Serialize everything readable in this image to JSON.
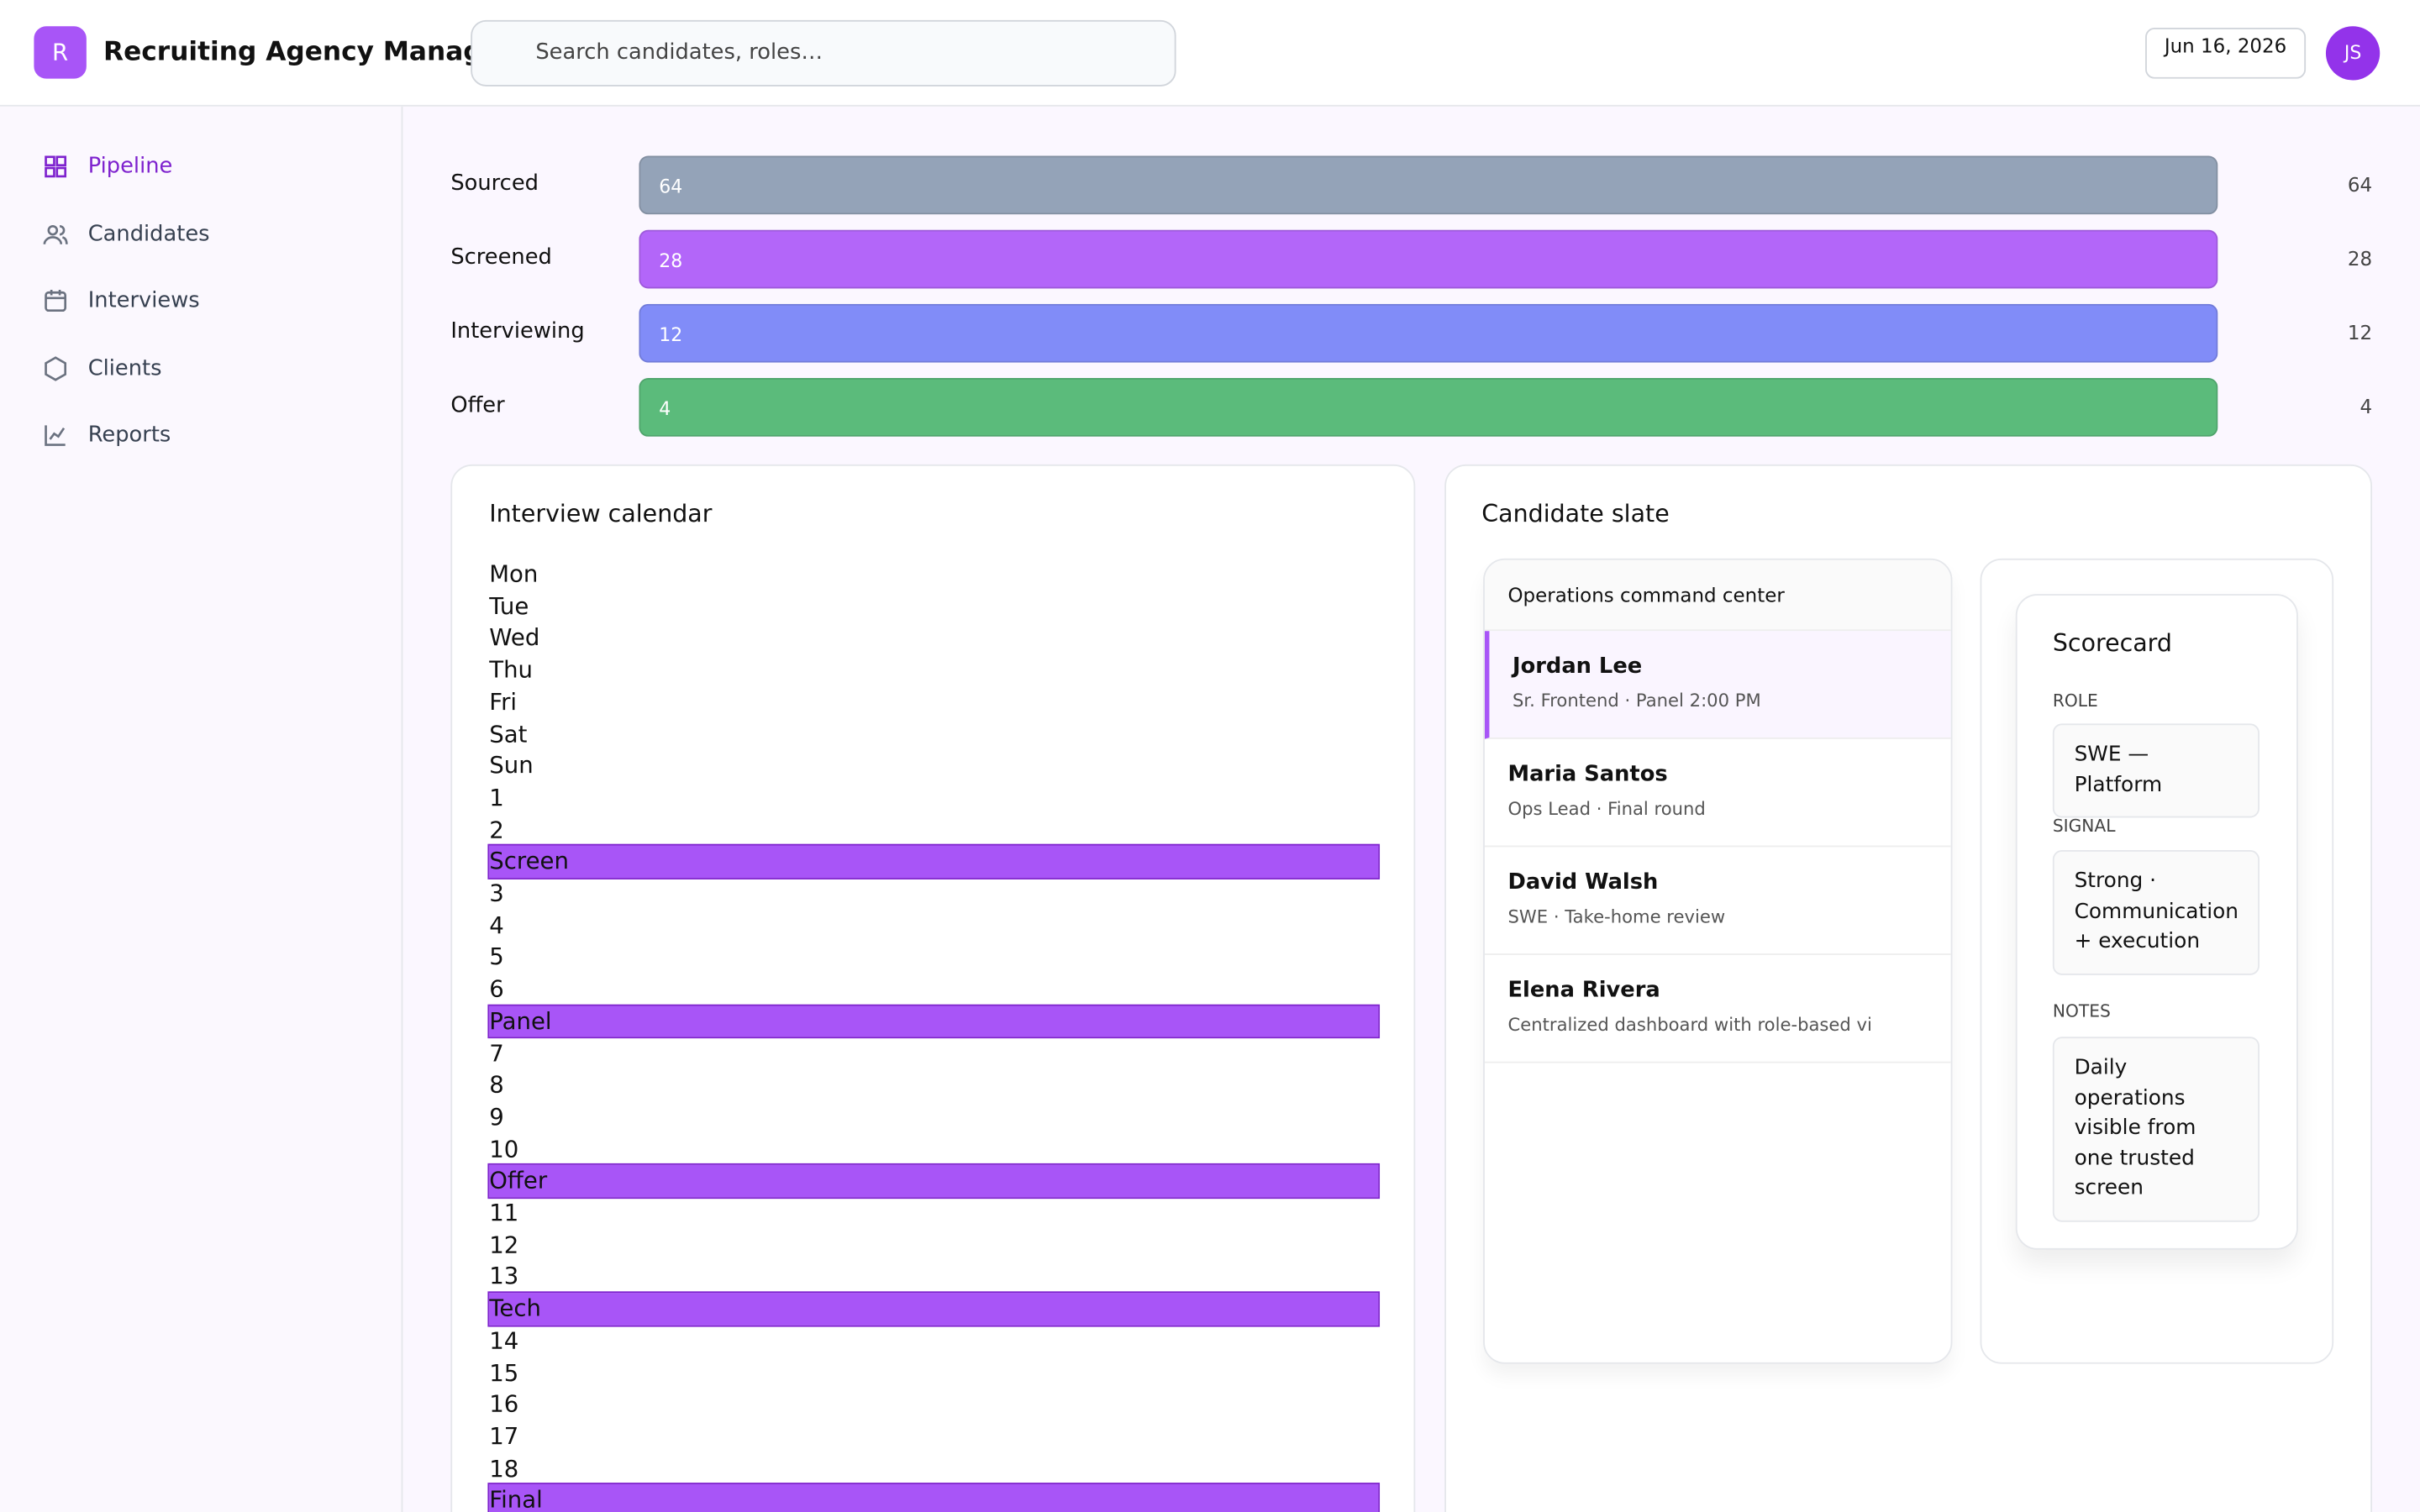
{
  "header": {
    "logo": "R",
    "title": "Recruiting Agency Manager",
    "search_placeholder": "Search candidates, roles…",
    "date": "Jun 16, 2026",
    "avatar": "JS"
  },
  "nav": {
    "active": 0,
    "items": [
      "Pipeline",
      "Candidates",
      "Interviews",
      "Clients",
      "Reports"
    ]
  },
  "pipeline": {
    "stages": [
      {
        "name": "Sourced",
        "count": 64,
        "color": "#94a3b8"
      },
      {
        "name": "Screened",
        "count": 28,
        "color": "#b366f9"
      },
      {
        "name": "Interviewing",
        "count": 12,
        "color": "#818cf8"
      },
      {
        "name": "Offer",
        "count": 4,
        "color": "#5bbb7b"
      }
    ]
  },
  "calendar": {
    "title": "Interview calendar",
    "items": [
      {
        "text": "Mon"
      },
      {
        "text": "Tue"
      },
      {
        "text": "Wed"
      },
      {
        "text": "Thu"
      },
      {
        "text": "Fri"
      },
      {
        "text": "Sat"
      },
      {
        "text": "Sun"
      },
      {
        "text": "1"
      },
      {
        "text": "2"
      },
      {
        "text": "Screen",
        "highlight": true
      },
      {
        "text": "3"
      },
      {
        "text": "4"
      },
      {
        "text": "5"
      },
      {
        "text": "6"
      },
      {
        "text": "Panel",
        "highlight": true
      },
      {
        "text": "7"
      },
      {
        "text": "8"
      },
      {
        "text": "9"
      },
      {
        "text": "10"
      },
      {
        "text": "Offer",
        "highlight": true
      },
      {
        "text": "11"
      },
      {
        "text": "12"
      },
      {
        "text": "13"
      },
      {
        "text": "Tech",
        "highlight": true
      },
      {
        "text": "14"
      },
      {
        "text": "15"
      },
      {
        "text": "16"
      },
      {
        "text": "17"
      },
      {
        "text": "18"
      },
      {
        "text": "Final",
        "highlight": true
      }
    ]
  },
  "slate": {
    "title": "Candidate slate",
    "list_title": "Operations command center",
    "selected": 0,
    "candidates": [
      {
        "name": "Jordan Lee",
        "detail": "Sr. Frontend · Panel 2:00 PM"
      },
      {
        "name": "Maria Santos",
        "detail": "Ops Lead · Final round"
      },
      {
        "name": "David Walsh",
        "detail": "SWE · Take-home review"
      },
      {
        "name": "Elena Rivera",
        "detail": "Centralized dashboard with role-based vi"
      }
    ],
    "scorecard": {
      "title": "Scorecard",
      "fields": [
        {
          "label": "ROLE",
          "value": "SWE — Platform"
        },
        {
          "label": "SIGNAL",
          "value": "Strong · Communication + execution"
        },
        {
          "label": "NOTES",
          "value": "Daily operations visible from one trusted screen"
        }
      ]
    }
  }
}
